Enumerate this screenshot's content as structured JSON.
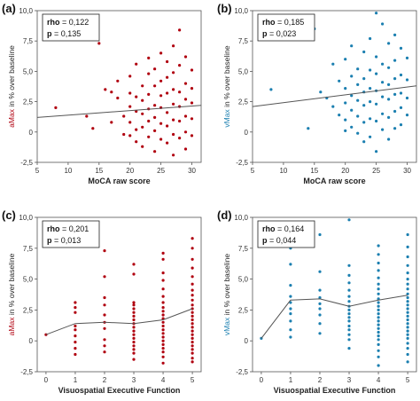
{
  "chart_data": [
    {
      "type": "scatter",
      "panel_label": "(a)",
      "xlabel": "MoCA raw score",
      "ylabel_colored": "aMax",
      "ylabel_rest": " in % over baseline",
      "color": "#b0000f",
      "xlim": [
        5,
        31.5
      ],
      "ylim": [
        -2.5,
        10
      ],
      "xticks": [
        5,
        10,
        15,
        20,
        25,
        30
      ],
      "yticks": [
        -2.5,
        0,
        2.5,
        5,
        7.5,
        10
      ],
      "xtick_labels": [
        "5",
        "10",
        "15",
        "20",
        "25",
        "30"
      ],
      "ytick_labels": [
        "-2,5",
        "0",
        "2,5",
        "5,0",
        "7,5",
        "10,0"
      ],
      "stat_label_1": "rho",
      "stat_value_1": " = 0,122",
      "stat_label_2": "p",
      "stat_value_2": " = 0,135",
      "fit_line": {
        "x": [
          5,
          31.5
        ],
        "y": [
          1.2,
          2.2
        ]
      },
      "points": [
        [
          8,
          2
        ],
        [
          13,
          1.3
        ],
        [
          14,
          0.3
        ],
        [
          15,
          7.3
        ],
        [
          16,
          3.5
        ],
        [
          17,
          3.3
        ],
        [
          17,
          0.8
        ],
        [
          18,
          4.2
        ],
        [
          18,
          2.8
        ],
        [
          19,
          1.3
        ],
        [
          19,
          -0.2
        ],
        [
          20,
          4.6
        ],
        [
          20,
          3.2
        ],
        [
          20,
          2.1
        ],
        [
          20,
          0.8
        ],
        [
          20,
          -0.3
        ],
        [
          21,
          5.6
        ],
        [
          21,
          2.9
        ],
        [
          21,
          1.7
        ],
        [
          21,
          0.2
        ],
        [
          21,
          -0.8
        ],
        [
          22,
          3.8
        ],
        [
          22,
          2.6
        ],
        [
          22,
          1.5
        ],
        [
          22,
          0.4
        ],
        [
          22,
          -1.2
        ],
        [
          23,
          6.1
        ],
        [
          23,
          4.8
        ],
        [
          23,
          3.1
        ],
        [
          23,
          1.9
        ],
        [
          23,
          0.9
        ],
        [
          23,
          -0.4
        ],
        [
          24,
          5.2
        ],
        [
          24,
          3.8
        ],
        [
          24,
          2.2
        ],
        [
          24,
          1.2
        ],
        [
          24,
          0.1
        ],
        [
          24,
          -1.6
        ],
        [
          25,
          6.5
        ],
        [
          25,
          4.2
        ],
        [
          25,
          3.0
        ],
        [
          25,
          2.0
        ],
        [
          25,
          0.7
        ],
        [
          25,
          -0.6
        ],
        [
          26,
          5.8
        ],
        [
          26,
          4.5
        ],
        [
          26,
          3.2
        ],
        [
          26,
          1.6
        ],
        [
          26,
          0.5
        ],
        [
          26,
          -0.9
        ],
        [
          27,
          7.1
        ],
        [
          27,
          4.9
        ],
        [
          27,
          3.5
        ],
        [
          27,
          2.3
        ],
        [
          27,
          1.0
        ],
        [
          27,
          -0.2
        ],
        [
          27,
          -1.9
        ],
        [
          28,
          8.4
        ],
        [
          28,
          5.5
        ],
        [
          28,
          3.3
        ],
        [
          28,
          2.1
        ],
        [
          28,
          0.9
        ],
        [
          28,
          -0.5
        ],
        [
          29,
          6.2
        ],
        [
          29,
          4.0
        ],
        [
          29,
          2.7
        ],
        [
          29,
          1.3
        ],
        [
          29,
          0.0
        ],
        [
          29,
          -1.4
        ],
        [
          30,
          5.1
        ],
        [
          30,
          3.6
        ],
        [
          30,
          2.4
        ],
        [
          30,
          1.1
        ],
        [
          30,
          -0.3
        ]
      ]
    },
    {
      "type": "scatter",
      "panel_label": "(b)",
      "xlabel": "MoCA raw score",
      "ylabel_colored": "vMax",
      "ylabel_rest": " in % over baseline",
      "color": "#1b7fb0",
      "xlim": [
        5,
        31.5
      ],
      "ylim": [
        -2.5,
        10
      ],
      "xticks": [
        5,
        10,
        15,
        20,
        25,
        30
      ],
      "yticks": [
        -2.5,
        0,
        2.5,
        5,
        7.5,
        10
      ],
      "xtick_labels": [
        "5",
        "10",
        "15",
        "20",
        "25",
        "30"
      ],
      "ytick_labels": [
        "-2,5",
        "0",
        "2,5",
        "5,0",
        "7,5",
        "10,0"
      ],
      "stat_label_1": "rho",
      "stat_value_1": " = 0,185",
      "stat_label_2": "p",
      "stat_value_2": " = 0,023",
      "fit_line": {
        "x": [
          5,
          31.5
        ],
        "y": [
          2.1,
          3.8
        ]
      },
      "points": [
        [
          8,
          3.5
        ],
        [
          14,
          0.3
        ],
        [
          15,
          8.5
        ],
        [
          16,
          3.3
        ],
        [
          17,
          2.8
        ],
        [
          18,
          5.6
        ],
        [
          18,
          2.1
        ],
        [
          19,
          4.2
        ],
        [
          19,
          1.4
        ],
        [
          20,
          6.0
        ],
        [
          20,
          3.6
        ],
        [
          20,
          2.4
        ],
        [
          20,
          1.0
        ],
        [
          20,
          0.1
        ],
        [
          21,
          7.1
        ],
        [
          21,
          4.6
        ],
        [
          21,
          3.0
        ],
        [
          21,
          1.8
        ],
        [
          21,
          0.4
        ],
        [
          22,
          5.2
        ],
        [
          22,
          3.9
        ],
        [
          22,
          2.6
        ],
        [
          22,
          1.3
        ],
        [
          22,
          -0.1
        ],
        [
          23,
          6.6
        ],
        [
          23,
          4.4
        ],
        [
          23,
          3.3
        ],
        [
          23,
          2.2
        ],
        [
          23,
          0.8
        ],
        [
          23,
          -0.8
        ],
        [
          24,
          7.7
        ],
        [
          24,
          5.1
        ],
        [
          24,
          3.6
        ],
        [
          24,
          2.5
        ],
        [
          24,
          1.1
        ],
        [
          24,
          -0.4
        ],
        [
          25,
          9.8
        ],
        [
          25,
          6.2
        ],
        [
          25,
          4.8
        ],
        [
          25,
          3.4
        ],
        [
          25,
          2.3
        ],
        [
          25,
          0.9
        ],
        [
          25,
          -1.6
        ],
        [
          26,
          8.9
        ],
        [
          26,
          5.6
        ],
        [
          26,
          4.1
        ],
        [
          26,
          2.9
        ],
        [
          26,
          1.5
        ],
        [
          26,
          0.2
        ],
        [
          27,
          7.3
        ],
        [
          27,
          5.3
        ],
        [
          27,
          3.9
        ],
        [
          27,
          2.7
        ],
        [
          27,
          1.2
        ],
        [
          27,
          -0.6
        ],
        [
          28,
          8.0
        ],
        [
          28,
          5.9
        ],
        [
          28,
          4.4
        ],
        [
          28,
          3.1
        ],
        [
          28,
          1.7
        ],
        [
          28,
          0.3
        ],
        [
          29,
          6.9
        ],
        [
          29,
          4.7
        ],
        [
          29,
          3.2
        ],
        [
          29,
          2.0
        ],
        [
          29,
          0.6
        ],
        [
          30,
          6.1
        ],
        [
          30,
          4.3
        ],
        [
          30,
          2.8
        ],
        [
          30,
          1.4
        ]
      ]
    },
    {
      "type": "scatter",
      "panel_label": "(c)",
      "xlabel": "Visuospatial Executive Function",
      "ylabel_colored": "aMax",
      "ylabel_rest": " in % over baseline",
      "color": "#b0000f",
      "xlim": [
        -0.3,
        5.3
      ],
      "ylim": [
        -2.5,
        10
      ],
      "xticks": [
        0,
        1,
        2,
        3,
        4,
        5
      ],
      "yticks": [
        -2.5,
        0,
        2.5,
        5,
        7.5,
        10
      ],
      "xtick_labels": [
        "0",
        "1",
        "2",
        "3",
        "4",
        "5"
      ],
      "ytick_labels": [
        "-2,5",
        "0",
        "2,5",
        "5,0",
        "7,5",
        "10,0"
      ],
      "stat_label_1": "rho",
      "stat_value_1": " = 0,201",
      "stat_label_2": "p",
      "stat_value_2": " = 0,013",
      "fit_line": {
        "x": [
          0,
          1,
          2,
          3,
          4,
          5
        ],
        "y": [
          0.5,
          1.4,
          1.5,
          1.4,
          1.7,
          2.6
        ]
      },
      "points": [
        [
          0,
          0.5
        ],
        [
          1,
          3.1
        ],
        [
          1,
          2.7
        ],
        [
          1,
          2.3
        ],
        [
          1,
          1.2
        ],
        [
          1,
          0.9
        ],
        [
          1,
          0.4
        ],
        [
          1,
          -0.1
        ],
        [
          1,
          -0.6
        ],
        [
          1,
          -1.1
        ],
        [
          2,
          7.3
        ],
        [
          2,
          5.2
        ],
        [
          2,
          3.5
        ],
        [
          2,
          2.9
        ],
        [
          2,
          2.1
        ],
        [
          2,
          1.5
        ],
        [
          2,
          1.0
        ],
        [
          2,
          0.1
        ],
        [
          2,
          -0.4
        ],
        [
          2,
          -0.9
        ],
        [
          3,
          6.2
        ],
        [
          3,
          5.4
        ],
        [
          3,
          3.1
        ],
        [
          3,
          2.9
        ],
        [
          3,
          2.6
        ],
        [
          3,
          2.3
        ],
        [
          3,
          2.0
        ],
        [
          3,
          1.7
        ],
        [
          3,
          1.4
        ],
        [
          3,
          1.1
        ],
        [
          3,
          0.8
        ],
        [
          3,
          0.5
        ],
        [
          3,
          0.2
        ],
        [
          3,
          -0.1
        ],
        [
          3,
          -0.4
        ],
        [
          3,
          -0.7
        ],
        [
          3,
          -1.0
        ],
        [
          3,
          -1.5
        ],
        [
          4,
          7.1
        ],
        [
          4,
          6.6
        ],
        [
          4,
          5.5
        ],
        [
          4,
          4.9
        ],
        [
          4,
          4.2
        ],
        [
          4,
          3.6
        ],
        [
          4,
          3.1
        ],
        [
          4,
          2.7
        ],
        [
          4,
          2.4
        ],
        [
          4,
          2.1
        ],
        [
          4,
          1.8
        ],
        [
          4,
          1.5
        ],
        [
          4,
          1.2
        ],
        [
          4,
          0.9
        ],
        [
          4,
          0.6
        ],
        [
          4,
          0.3
        ],
        [
          4,
          0.0
        ],
        [
          4,
          -0.3
        ],
        [
          4,
          -0.6
        ],
        [
          4,
          -0.9
        ],
        [
          4,
          -1.3
        ],
        [
          4,
          -1.8
        ],
        [
          5,
          8.3
        ],
        [
          5,
          7.5
        ],
        [
          5,
          6.6
        ],
        [
          5,
          5.9
        ],
        [
          5,
          5.2
        ],
        [
          5,
          4.6
        ],
        [
          5,
          4.1
        ],
        [
          5,
          3.7
        ],
        [
          5,
          3.3
        ],
        [
          5,
          2.9
        ],
        [
          5,
          2.6
        ],
        [
          5,
          2.3
        ],
        [
          5,
          2.0
        ],
        [
          5,
          1.7
        ],
        [
          5,
          1.4
        ],
        [
          5,
          1.1
        ],
        [
          5,
          0.8
        ],
        [
          5,
          0.5
        ],
        [
          5,
          0.2
        ],
        [
          5,
          -0.1
        ],
        [
          5,
          -0.4
        ],
        [
          5,
          -0.7
        ],
        [
          5,
          -1.0
        ],
        [
          5,
          -1.4
        ],
        [
          5,
          -1.7
        ]
      ]
    },
    {
      "type": "scatter",
      "panel_label": "(d)",
      "xlabel": "Visuospatial Executive Function",
      "ylabel_colored": "vMax",
      "ylabel_rest": " in % over baseline",
      "color": "#1b7fb0",
      "xlim": [
        -0.3,
        5.3
      ],
      "ylim": [
        -2.5,
        10
      ],
      "xticks": [
        0,
        1,
        2,
        3,
        4,
        5
      ],
      "yticks": [
        -2.5,
        0,
        2.5,
        5,
        7.5,
        10
      ],
      "xtick_labels": [
        "0",
        "1",
        "2",
        "3",
        "4",
        "5"
      ],
      "ytick_labels": [
        "-2,5",
        "0",
        "2,5",
        "5,0",
        "7,5",
        "10,0"
      ],
      "stat_label_1": "rho",
      "stat_value_1": " = 0,164",
      "stat_label_2": "p",
      "stat_value_2": " = 0,044",
      "fit_line": {
        "x": [
          0,
          1,
          2,
          3,
          4,
          5
        ],
        "y": [
          0.2,
          3.3,
          3.4,
          2.8,
          3.3,
          3.7
        ]
      },
      "points": [
        [
          0,
          0.2
        ],
        [
          1,
          7.5
        ],
        [
          1,
          6.2
        ],
        [
          1,
          4.5
        ],
        [
          1,
          3.6
        ],
        [
          1,
          3.1
        ],
        [
          1,
          2.6
        ],
        [
          1,
          2.2
        ],
        [
          1,
          1.6
        ],
        [
          1,
          0.9
        ],
        [
          1,
          0.3
        ],
        [
          2,
          8.6
        ],
        [
          2,
          5.6
        ],
        [
          2,
          4.1
        ],
        [
          2,
          3.5
        ],
        [
          2,
          3.0
        ],
        [
          2,
          2.6
        ],
        [
          2,
          2.1
        ],
        [
          2,
          1.4
        ],
        [
          2,
          0.6
        ],
        [
          3,
          9.8
        ],
        [
          3,
          6.1
        ],
        [
          3,
          5.3
        ],
        [
          3,
          4.7
        ],
        [
          3,
          4.1
        ],
        [
          3,
          3.6
        ],
        [
          3,
          3.2
        ],
        [
          3,
          2.8
        ],
        [
          3,
          2.5
        ],
        [
          3,
          2.2
        ],
        [
          3,
          1.9
        ],
        [
          3,
          1.6
        ],
        [
          3,
          1.2
        ],
        [
          3,
          0.9
        ],
        [
          3,
          0.5
        ],
        [
          3,
          0.1
        ],
        [
          3,
          -0.6
        ],
        [
          4,
          7.7
        ],
        [
          4,
          7.0
        ],
        [
          4,
          6.3
        ],
        [
          4,
          5.7
        ],
        [
          4,
          5.1
        ],
        [
          4,
          4.6
        ],
        [
          4,
          4.2
        ],
        [
          4,
          3.8
        ],
        [
          4,
          3.4
        ],
        [
          4,
          3.1
        ],
        [
          4,
          2.8
        ],
        [
          4,
          2.5
        ],
        [
          4,
          2.2
        ],
        [
          4,
          1.9
        ],
        [
          4,
          1.6
        ],
        [
          4,
          1.3
        ],
        [
          4,
          1.0
        ],
        [
          4,
          0.7
        ],
        [
          4,
          0.4
        ],
        [
          4,
          0.1
        ],
        [
          4,
          -0.3
        ],
        [
          4,
          -0.8
        ],
        [
          4,
          -1.3
        ],
        [
          4,
          -2.0
        ],
        [
          5,
          8.6
        ],
        [
          5,
          7.6
        ],
        [
          5,
          6.8
        ],
        [
          5,
          6.1
        ],
        [
          5,
          5.5
        ],
        [
          5,
          5.0
        ],
        [
          5,
          4.6
        ],
        [
          5,
          4.2
        ],
        [
          5,
          3.8
        ],
        [
          5,
          3.5
        ],
        [
          5,
          3.2
        ],
        [
          5,
          2.9
        ],
        [
          5,
          2.6
        ],
        [
          5,
          2.3
        ],
        [
          5,
          2.0
        ],
        [
          5,
          1.7
        ],
        [
          5,
          1.4
        ],
        [
          5,
          1.1
        ],
        [
          5,
          0.8
        ],
        [
          5,
          0.5
        ],
        [
          5,
          0.2
        ],
        [
          5,
          -0.2
        ],
        [
          5,
          -0.6
        ],
        [
          5,
          -1.1
        ],
        [
          5,
          -1.7
        ]
      ]
    }
  ]
}
